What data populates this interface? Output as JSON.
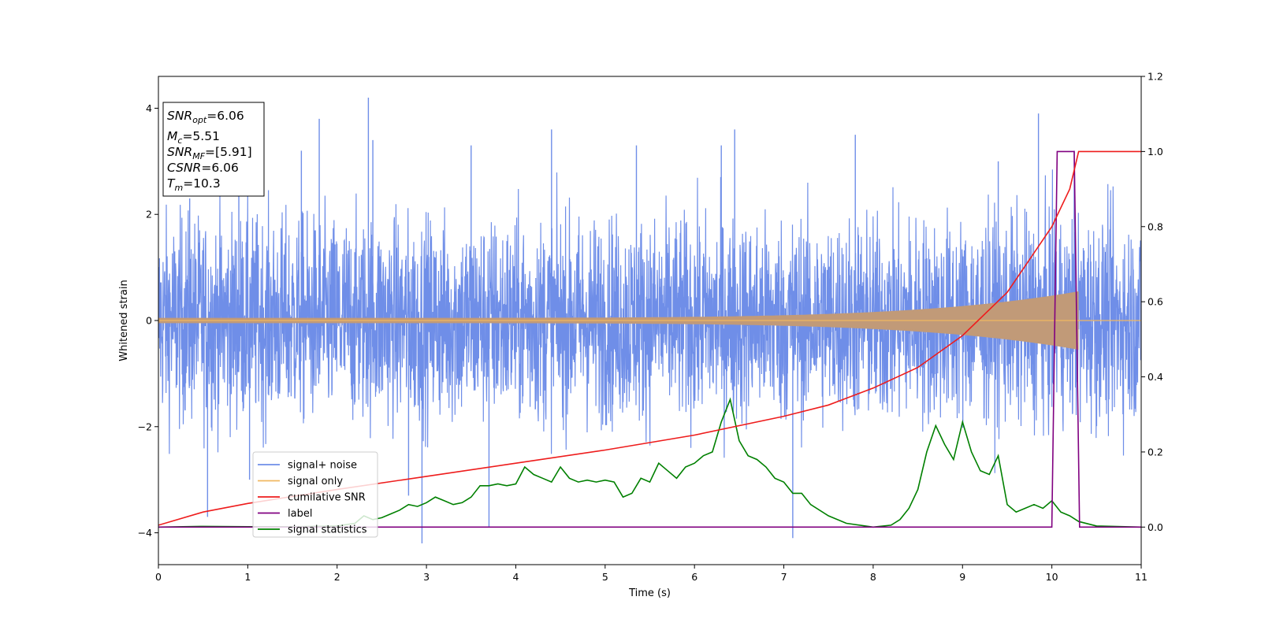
{
  "chart_data": {
    "type": "line",
    "title": "",
    "xlabel": "Time (s)",
    "ylabel": "Whitened strain",
    "xlim": [
      0,
      11
    ],
    "ylim_left": [
      -4.6,
      4.6
    ],
    "ylim_right": [
      -0.1,
      1.2
    ],
    "x_ticks": [
      "0",
      "1",
      "2",
      "3",
      "4",
      "5",
      "6",
      "7",
      "8",
      "9",
      "10",
      "11"
    ],
    "y_ticks_left": [
      "−4",
      "−2",
      "0",
      "2",
      "4"
    ],
    "y_ticks_right": [
      "0.0",
      "0.2",
      "0.4",
      "0.6",
      "0.8",
      "1.0",
      "1.2"
    ],
    "grid": false,
    "legend_position": "lower-left",
    "annotation": {
      "snr_opt": {
        "label": "SNR",
        "sub": "opt",
        "value": "=6.06"
      },
      "mc": {
        "label": "M",
        "sub": "c",
        "value": "=5.51"
      },
      "snr_mf": {
        "label": "SNR",
        "sub": "MF",
        "value": "=[5.91]"
      },
      "csnr": {
        "label": "CSNR",
        "sub": "",
        "value": "=6.06"
      },
      "tm": {
        "label": "T",
        "sub": "m",
        "value": "=10.3"
      }
    },
    "series": [
      {
        "name": "signal+ noise",
        "axis": "left",
        "color": "#6f8ee8",
        "description_note": "dense noise band",
        "envelope": {
          "x": [
            0,
            11
          ],
          "ymin_typical": -2.3,
          "ymax_typical": 2.3
        },
        "peaks": [
          [
            0.35,
            2.3
          ],
          [
            0.55,
            -3.7
          ],
          [
            0.9,
            3.4
          ],
          [
            1.02,
            -3.0
          ],
          [
            1.6,
            3.2
          ],
          [
            1.8,
            3.8
          ],
          [
            2.35,
            4.2
          ],
          [
            2.4,
            3.4
          ],
          [
            2.8,
            -3.3
          ],
          [
            2.95,
            -4.2
          ],
          [
            3.5,
            3.3
          ],
          [
            3.7,
            -3.9
          ],
          [
            4.4,
            3.6
          ],
          [
            5.35,
            3.3
          ],
          [
            6.3,
            3.3
          ],
          [
            6.45,
            3.6
          ],
          [
            7.1,
            -4.1
          ],
          [
            7.8,
            3.5
          ],
          [
            9.4,
            3.0
          ],
          [
            9.85,
            3.9
          ],
          [
            10.25,
            3.2
          ]
        ]
      },
      {
        "name": "signal only",
        "axis": "left",
        "color": "#f0b860",
        "chirp": {
          "x": [
            0,
            10.3
          ],
          "amplitude_start": 0.05,
          "amplitude_end": 0.55
        }
      },
      {
        "name": "cumilative SNR",
        "axis": "right",
        "color": "#ee1c1c",
        "x": [
          0,
          0.5,
          1,
          2,
          3,
          4,
          5,
          6,
          7,
          7.5,
          8,
          8.5,
          9,
          9.5,
          9.8,
          10,
          10.2,
          10.3,
          11
        ],
        "y": [
          0.005,
          0.04,
          0.063,
          0.1,
          0.135,
          0.17,
          0.205,
          0.245,
          0.295,
          0.325,
          0.37,
          0.425,
          0.51,
          0.625,
          0.73,
          0.8,
          0.9,
          1.0,
          1.0
        ]
      },
      {
        "name": "label",
        "axis": "right",
        "color": "#800080",
        "x": [
          0,
          10.0,
          10.06,
          10.25,
          10.31,
          11
        ],
        "y": [
          0,
          0,
          1,
          1,
          0,
          0
        ]
      },
      {
        "name": "signal statistics",
        "axis": "right",
        "color": "#008000",
        "x": [
          0,
          0.5,
          1,
          1.5,
          2.0,
          2.2,
          2.3,
          2.4,
          2.5,
          2.6,
          2.7,
          2.8,
          2.9,
          3.0,
          3.1,
          3.2,
          3.3,
          3.4,
          3.5,
          3.6,
          3.7,
          3.8,
          3.9,
          4.0,
          4.1,
          4.2,
          4.3,
          4.4,
          4.5,
          4.6,
          4.7,
          4.8,
          4.9,
          5.0,
          5.1,
          5.2,
          5.3,
          5.4,
          5.5,
          5.6,
          5.7,
          5.8,
          5.9,
          6.0,
          6.1,
          6.2,
          6.3,
          6.4,
          6.5,
          6.6,
          6.7,
          6.8,
          6.9,
          7.0,
          7.1,
          7.2,
          7.3,
          7.5,
          7.7,
          8.0,
          8.2,
          8.3,
          8.4,
          8.5,
          8.6,
          8.7,
          8.8,
          8.9,
          9.0,
          9.1,
          9.2,
          9.3,
          9.4,
          9.5,
          9.6,
          9.7,
          9.8,
          9.9,
          10.0,
          10.1,
          10.2,
          10.3,
          10.5,
          11.0
        ],
        "y": [
          0.0,
          0.002,
          0.001,
          0.001,
          0.003,
          0.01,
          0.03,
          0.02,
          0.025,
          0.035,
          0.045,
          0.06,
          0.055,
          0.065,
          0.08,
          0.07,
          0.06,
          0.065,
          0.08,
          0.11,
          0.11,
          0.115,
          0.11,
          0.115,
          0.16,
          0.14,
          0.13,
          0.12,
          0.16,
          0.13,
          0.12,
          0.125,
          0.12,
          0.125,
          0.12,
          0.08,
          0.09,
          0.13,
          0.12,
          0.17,
          0.15,
          0.13,
          0.16,
          0.17,
          0.19,
          0.2,
          0.28,
          0.34,
          0.23,
          0.19,
          0.18,
          0.16,
          0.13,
          0.12,
          0.09,
          0.09,
          0.06,
          0.03,
          0.01,
          0.0,
          0.005,
          0.02,
          0.05,
          0.1,
          0.2,
          0.27,
          0.22,
          0.18,
          0.28,
          0.2,
          0.15,
          0.14,
          0.19,
          0.06,
          0.04,
          0.05,
          0.06,
          0.05,
          0.07,
          0.04,
          0.03,
          0.015,
          0.003,
          0.0
        ]
      }
    ]
  }
}
